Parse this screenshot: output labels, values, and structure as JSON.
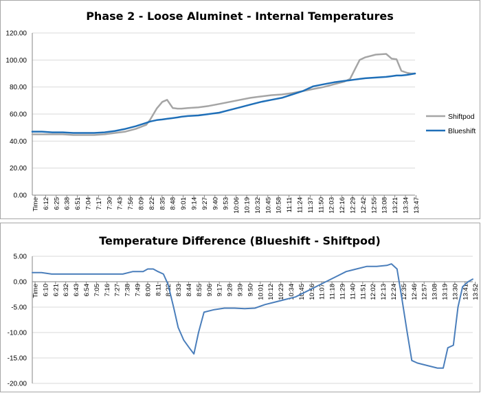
{
  "chart_data": [
    {
      "type": "line",
      "title": "Phase 2 - Loose Aluminet - Internal Temperatures",
      "xlabel": "",
      "ylabel": "",
      "ylim": [
        0,
        120
      ],
      "grid": true,
      "legend": "right",
      "y_ticks": [
        "0.00",
        "20.00",
        "40.00",
        "60.00",
        "80.00",
        "100.00",
        "120.00"
      ],
      "x_tick_labels": [
        "Time",
        "6:12",
        "6:25",
        "6:38",
        "6:51",
        "7:04",
        "7:17",
        "7:30",
        "7:43",
        "7:56",
        "8:09",
        "8:22",
        "8:35",
        "8:48",
        "9:01",
        "9:14",
        "9:27",
        "9:40",
        "9:53",
        "10:06",
        "10:19",
        "10:32",
        "10:45",
        "10:58",
        "11:11",
        "11:24",
        "11:37",
        "11:50",
        "12:03",
        "12:16",
        "12:29",
        "12:42",
        "12:55",
        "13:08",
        "13:21",
        "13:34",
        "13:47"
      ],
      "x": [
        "6:00",
        "6:12",
        "6:25",
        "6:38",
        "6:51",
        "7:04",
        "7:17",
        "7:30",
        "7:43",
        "7:56",
        "8:09",
        "8:22",
        "8:27",
        "8:35",
        "8:42",
        "8:48",
        "8:55",
        "9:01",
        "9:06",
        "9:14",
        "9:27",
        "9:40",
        "9:53",
        "10:06",
        "10:19",
        "10:32",
        "10:45",
        "10:58",
        "11:11",
        "11:24",
        "11:37",
        "11:50",
        "12:03",
        "12:16",
        "12:29",
        "12:36",
        "12:42",
        "12:48",
        "12:55",
        "13:08",
        "13:21",
        "13:28",
        "13:34",
        "13:40",
        "13:47",
        "13:52",
        "13:57"
      ],
      "series": [
        {
          "name": "Shiftpod",
          "color": "#a5a5a5",
          "values": [
            45.0,
            45.0,
            45.0,
            45.0,
            44.5,
            44.5,
            44.5,
            45.0,
            46.0,
            47.0,
            49.0,
            52.0,
            56.0,
            64.0,
            69.0,
            70.5,
            64.5,
            64.0,
            64.0,
            64.5,
            65.0,
            66.0,
            67.5,
            69.0,
            70.5,
            72.0,
            73.0,
            74.0,
            74.5,
            75.5,
            77.0,
            78.5,
            80.0,
            82.0,
            84.0,
            86.0,
            93.0,
            100.0,
            102.0,
            104.0,
            104.5,
            101.0,
            100.5,
            92.0,
            90.5,
            90.0,
            90.0
          ]
        },
        {
          "name": "Blueshift",
          "color": "#1f6fb8",
          "values": [
            47.0,
            47.0,
            46.5,
            46.5,
            46.0,
            46.0,
            46.0,
            46.5,
            47.5,
            49.0,
            51.0,
            53.5,
            54.5,
            55.5,
            56.0,
            56.5,
            57.0,
            57.5,
            58.0,
            58.5,
            59.0,
            60.0,
            61.0,
            63.0,
            65.0,
            67.0,
            69.0,
            70.5,
            72.0,
            74.5,
            77.0,
            80.5,
            82.0,
            83.5,
            84.5,
            85.0,
            85.5,
            86.0,
            86.5,
            87.0,
            87.5,
            88.0,
            88.5,
            88.5,
            89.0,
            89.5,
            90.0
          ]
        }
      ]
    },
    {
      "type": "line",
      "title": "Temperature Difference (Blueshift - Shiftpod)",
      "xlabel": "",
      "ylabel": "",
      "ylim": [
        -20,
        5
      ],
      "grid": true,
      "legend": "none",
      "y_ticks": [
        "-20.00",
        "-15.00",
        "-10.00",
        "-5.00",
        "0.00",
        "5.00"
      ],
      "x_tick_labels": [
        "Time",
        "6:10",
        "6:21",
        "6:32",
        "6:43",
        "6:54",
        "7:05",
        "7:16",
        "7:27",
        "7:38",
        "7:49",
        "8:00",
        "8:11",
        "8:22",
        "8:33",
        "8:44",
        "8:55",
        "9:06",
        "9:17",
        "9:28",
        "9:39",
        "9:50",
        "10:01",
        "10:12",
        "10:23",
        "10:34",
        "10:45",
        "10:56",
        "11:07",
        "11:18",
        "11:29",
        "11:40",
        "11:51",
        "12:02",
        "12:13",
        "12:24",
        "12:35",
        "12:46",
        "12:57",
        "13:08",
        "13:19",
        "13:30",
        "13:41",
        "13:52"
      ],
      "x": [
        "6:00",
        "6:10",
        "6:21",
        "6:32",
        "6:43",
        "6:54",
        "7:05",
        "7:16",
        "7:27",
        "7:38",
        "7:49",
        "8:00",
        "8:05",
        "8:11",
        "8:16",
        "8:22",
        "8:27",
        "8:33",
        "8:38",
        "8:44",
        "8:50",
        "8:55",
        "9:00",
        "9:06",
        "9:17",
        "9:28",
        "9:39",
        "9:50",
        "10:01",
        "10:12",
        "10:23",
        "10:34",
        "10:45",
        "10:56",
        "11:07",
        "11:18",
        "11:29",
        "11:40",
        "11:51",
        "12:02",
        "12:13",
        "12:24",
        "12:29",
        "12:35",
        "12:40",
        "12:46",
        "12:51",
        "12:57",
        "13:08",
        "13:19",
        "13:25",
        "13:30",
        "13:36",
        "13:41",
        "13:46",
        "13:52",
        "13:57"
      ],
      "series": [
        {
          "name": "",
          "color": "#4a7ebb",
          "values": [
            1.8,
            1.8,
            1.5,
            1.5,
            1.5,
            1.5,
            1.5,
            1.5,
            1.5,
            1.5,
            2.0,
            2.0,
            2.5,
            2.5,
            2.0,
            1.5,
            -0.5,
            -5.0,
            -9.0,
            -11.5,
            -13.0,
            -14.2,
            -10.0,
            -6.0,
            -5.5,
            -5.2,
            -5.2,
            -5.3,
            -5.2,
            -4.5,
            -4.0,
            -3.5,
            -3.0,
            -2.0,
            -1.0,
            0.0,
            1.0,
            2.0,
            2.5,
            3.0,
            3.0,
            3.2,
            3.5,
            2.5,
            -3.0,
            -10.0,
            -15.5,
            -16.0,
            -16.5,
            -17.0,
            -17.0,
            -13.0,
            -12.5,
            -5.0,
            -1.0,
            0.0,
            0.5
          ]
        }
      ]
    }
  ]
}
